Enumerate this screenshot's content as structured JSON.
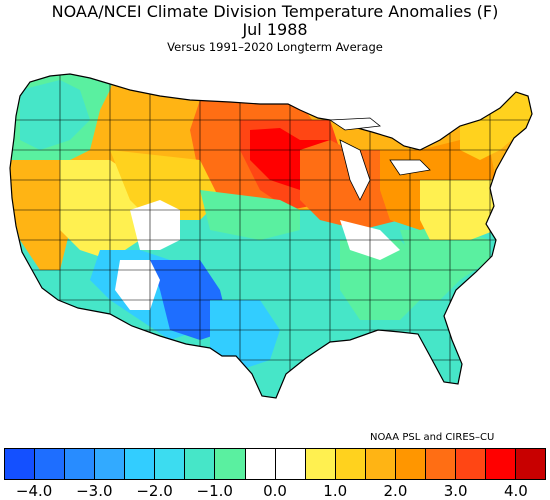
{
  "header": {
    "title": "NOAA/NCEI Climate Division Temperature Anomalies (F)",
    "period": "Jul 1988",
    "subtitle": "Versus 1991–2020 Longterm Average"
  },
  "credit": "NOAA PSL and CIRES–CU",
  "colorbar": {
    "colors": [
      "#1450ff",
      "#1e6eff",
      "#288cff",
      "#32aaff",
      "#32cdff",
      "#3cdcf0",
      "#46e6c8",
      "#5af0a0",
      "#ffffff",
      "#ffffff",
      "#fff050",
      "#ffd21e",
      "#ffb414",
      "#ff9600",
      "#ff6e14",
      "#ff4614",
      "#ff0000",
      "#c80000"
    ],
    "tick_labels": [
      "−4.0",
      "−3.0",
      "−2.0",
      "−1.0",
      "0.0",
      "1.0",
      "2.0",
      "3.0",
      "4.0"
    ]
  },
  "map_regions": [
    {
      "region": "Pacific Northwest",
      "color": "#5af0a0"
    },
    {
      "region": "Northwest interior",
      "color": "#ffb414"
    },
    {
      "region": "Northern Plains",
      "color": "#ff6e14"
    },
    {
      "region": "Upper Midwest",
      "color": "#ff0000"
    },
    {
      "region": "Great Lakes",
      "color": "#ff4614"
    },
    {
      "region": "Northeast",
      "color": "#ffb414"
    },
    {
      "region": "California",
      "color": "#ffb414"
    },
    {
      "region": "Great Basin",
      "color": "#fff050"
    },
    {
      "region": "Central Rockies",
      "color": "#fff050"
    },
    {
      "region": "Central Plains",
      "color": "#46e6c8"
    },
    {
      "region": "Southwest",
      "color": "#32aaff"
    },
    {
      "region": "Texas",
      "color": "#46e6c8"
    },
    {
      "region": "Southeast",
      "color": "#5af0a0"
    },
    {
      "region": "Mid-Atlantic",
      "color": "#fff050"
    }
  ]
}
